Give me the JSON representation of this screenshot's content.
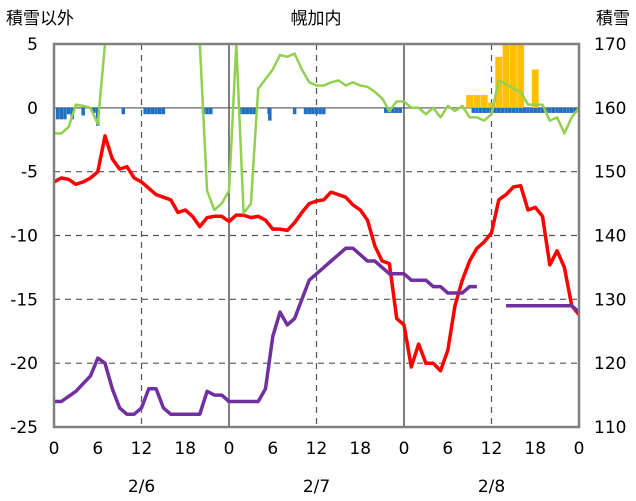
{
  "chart_data": {
    "type": "line",
    "title": "幌加内",
    "left_axis_title": "積雪以外",
    "right_axis_title": "積雪",
    "left_ylim": [
      -25,
      5
    ],
    "left_yticks": [
      "5",
      "0",
      "-5",
      "-10",
      "-15",
      "-20",
      "-25"
    ],
    "right_ylim": [
      110,
      170
    ],
    "right_yticks": [
      "170",
      "160",
      "150",
      "140",
      "130",
      "120",
      "110"
    ],
    "x_range_hours": [
      0,
      72
    ],
    "x_tick_labels": [
      "0",
      "6",
      "12",
      "18",
      "0",
      "6",
      "12",
      "18",
      "0",
      "6",
      "12",
      "18",
      "0"
    ],
    "date_labels": [
      "2/6",
      "2/7",
      "2/8"
    ],
    "grid": true,
    "bars_negative": {
      "color": "#1f6fc0",
      "x": [
        0.5,
        1,
        1.5,
        2,
        2.5,
        4,
        5.5,
        6,
        9.5,
        12.5,
        13,
        13.5,
        14,
        14.5,
        15,
        20.5,
        21,
        21.5,
        25.5,
        26,
        26.5,
        27,
        27.5,
        29.5,
        29.6,
        33,
        34.5,
        35,
        35.5,
        36,
        36.5,
        37,
        45.5,
        46,
        46.5,
        47,
        47.5,
        57.5,
        58,
        58.5,
        59,
        59.5,
        60,
        60.5,
        61,
        61.5,
        62,
        62.5,
        63,
        63.5,
        64,
        64.5,
        65,
        65.5,
        66,
        66.5,
        67,
        67.5,
        68,
        68.5,
        69,
        69.5,
        70,
        70.5,
        71,
        71.5
      ],
      "values": [
        -0.9,
        -0.9,
        -0.9,
        -0.5,
        -0.9,
        -0.6,
        -0.4,
        -1.4,
        -0.5,
        -0.5,
        -0.5,
        -0.5,
        -0.5,
        -0.5,
        -0.5,
        -0.5,
        -0.5,
        -0.5,
        -0.5,
        -0.5,
        -0.5,
        -0.5,
        -0.5,
        -0.5,
        -1.0,
        -0.5,
        -0.5,
        -0.5,
        -0.5,
        -0.5,
        -0.5,
        -0.5,
        -0.4,
        -0.4,
        -0.4,
        -0.4,
        -0.4,
        -0.4,
        -0.4,
        -0.4,
        -0.4,
        -0.4,
        -0.4,
        -0.4,
        -0.4,
        -0.4,
        -0.4,
        -0.4,
        -0.4,
        -0.4,
        -0.4,
        -0.4,
        -0.4,
        -0.4,
        -0.4,
        -0.4,
        -0.4,
        -0.4,
        -0.4,
        -0.4,
        -0.4,
        -0.4,
        -0.4,
        -0.4,
        -0.4,
        -0.4
      ]
    },
    "bars_positive": {
      "color": "#ffc000",
      "x": [
        57,
        58,
        59,
        60,
        61,
        62,
        63,
        64,
        66
      ],
      "values": [
        1,
        1,
        1,
        0.4,
        4,
        5,
        5,
        5,
        3
      ]
    },
    "series": [
      {
        "color": "#ff0000",
        "x": [
          0,
          1,
          2,
          3,
          4,
          5,
          6,
          7,
          8,
          9,
          10,
          11,
          12,
          13,
          14,
          15,
          16,
          17,
          18,
          19,
          20,
          21,
          22,
          23,
          24,
          25,
          26,
          27,
          28,
          29,
          30,
          31,
          32,
          33,
          34,
          35,
          36,
          37,
          38,
          39,
          40,
          41,
          42,
          43,
          44,
          45,
          46,
          47,
          48,
          49,
          50,
          51,
          52,
          53,
          54,
          55,
          56,
          57,
          58,
          59,
          60,
          61,
          62,
          63,
          64,
          65,
          66,
          67,
          68,
          69,
          70,
          71,
          72
        ],
        "values": [
          -5.8,
          -5.5,
          -5.6,
          -6,
          -5.8,
          -5.5,
          -5,
          -2.2,
          -4,
          -4.8,
          -4.6,
          -5.5,
          -5.8,
          -6.3,
          -6.8,
          -7,
          -7.2,
          -8.2,
          -8,
          -8.5,
          -9.3,
          -8.6,
          -8.5,
          -8.5,
          -8.9,
          -8.4,
          -8.4,
          -8.6,
          -8.5,
          -8.8,
          -9.5,
          -9.5,
          -9.6,
          -9,
          -8.2,
          -7.5,
          -7.3,
          -7.2,
          -6.6,
          -6.8,
          -7,
          -7.6,
          -8,
          -8.8,
          -10.8,
          -12,
          -12.2,
          -16.5,
          -17,
          -20.3,
          -18.5,
          -20,
          -20,
          -20.6,
          -19,
          -15.5,
          -13.5,
          -12,
          -11,
          -10.5,
          -9.8,
          -7.2,
          -6.8,
          -6.2,
          -6.1,
          -8,
          -7.8,
          -8.5,
          -12.3,
          -11.2,
          -12.5,
          -15.5,
          -16.2
        ]
      },
      {
        "color": "#7030a0",
        "x": [
          0,
          1,
          2,
          3,
          4,
          5,
          6,
          7,
          8,
          9,
          10,
          11,
          12,
          13,
          14,
          15,
          16,
          17,
          18,
          19,
          20,
          21,
          22,
          23,
          24,
          25,
          26,
          27,
          28,
          29,
          30,
          31,
          32,
          33,
          34,
          35,
          36,
          37,
          38,
          39,
          40,
          41,
          42,
          43,
          44,
          45,
          46,
          47,
          48,
          49,
          50,
          51,
          52,
          53,
          54,
          55,
          56,
          57,
          58,
          59,
          60,
          61,
          62,
          63,
          64,
          65,
          66,
          67,
          68,
          69,
          70,
          71,
          72
        ],
        "values": [
          -23,
          -23,
          -22.6,
          -22.2,
          -21.6,
          -21,
          -19.6,
          -20,
          -22,
          -23.5,
          -24,
          -24,
          -23.5,
          -22,
          -22,
          -23.5,
          -24,
          -24,
          -24,
          -24,
          -24,
          -22.2,
          -22.5,
          -22.5,
          -23,
          -23,
          -23,
          -23,
          -23,
          -22,
          -17.9,
          -16,
          -17,
          -16.5,
          -15,
          -13.5,
          -13,
          -12.5,
          -12,
          -11.5,
          -11,
          -11,
          -11.5,
          -12,
          -12,
          -12.5,
          -13,
          -13,
          -13,
          -13.5,
          -13.5,
          -13.5,
          -14,
          -14,
          -14.5,
          -14.5,
          -14.5,
          -14,
          -14,
          null,
          null,
          null,
          -15.5,
          -15.5,
          -15.5,
          -15.5,
          -15.5,
          -15.5,
          -15.5,
          -15.5,
          -15.5,
          -15.5,
          -16
        ]
      },
      {
        "color": "#92d050",
        "axis": "right",
        "x": [
          0,
          1,
          2,
          3,
          4,
          5,
          6,
          7,
          8,
          9,
          10,
          11,
          12,
          13,
          14,
          15,
          16,
          17,
          18,
          19,
          20,
          21,
          22,
          23,
          24,
          25,
          26,
          27,
          28,
          29,
          30,
          31,
          32,
          33,
          34,
          35,
          36,
          37,
          38,
          39,
          40,
          41,
          42,
          43,
          44,
          45,
          46,
          47,
          48,
          49,
          50,
          51,
          52,
          53,
          54,
          55,
          56,
          57,
          58,
          59,
          60,
          61,
          62,
          63,
          64,
          65,
          66,
          67,
          68,
          69,
          70,
          71,
          72
        ],
        "values": [
          156,
          156,
          157,
          160.5,
          160.3,
          160,
          157.5,
          170,
          180,
          180,
          180,
          180,
          170.5,
          180,
          180,
          180,
          180,
          180,
          180,
          180,
          170,
          147,
          144,
          145,
          147,
          170,
          143.5,
          145,
          163,
          164.5,
          166,
          168.3,
          168,
          168.5,
          166,
          164,
          163.5,
          163.5,
          164,
          164.3,
          163.5,
          164,
          163.5,
          163.3,
          162.5,
          161.5,
          159.5,
          161,
          161,
          160,
          160,
          159,
          160,
          158.5,
          160.3,
          159.5,
          160.3,
          158.5,
          158.5,
          158,
          159,
          164.3,
          163.7,
          163,
          162.5,
          160.5,
          160.5,
          160.5,
          158,
          158.5,
          156,
          158.5,
          160
        ]
      }
    ]
  }
}
